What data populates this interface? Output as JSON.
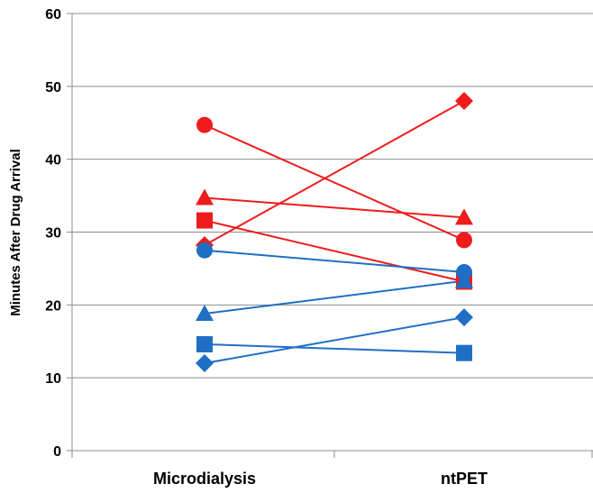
{
  "chart_data": {
    "type": "line",
    "title": "",
    "xlabel": "",
    "ylabel": "Minutes After Drug Arrival",
    "categories": [
      "Microdialysis",
      "ntPET"
    ],
    "ylim": [
      0,
      60
    ],
    "yticks": [
      "0",
      "10",
      "20",
      "30",
      "40",
      "50",
      "60"
    ],
    "grid": true,
    "legend": "none",
    "series": [
      {
        "marker": "circle",
        "color": "#ee1c1c",
        "values": [
          44.7,
          28.9
        ]
      },
      {
        "marker": "diamond",
        "color": "#ee1c1c",
        "values": [
          28.2,
          48.0
        ]
      },
      {
        "marker": "triangle",
        "color": "#ee1c1c",
        "values": [
          34.7,
          32.0
        ]
      },
      {
        "marker": "square",
        "color": "#ee1c1c",
        "values": [
          31.6,
          23.2
        ]
      },
      {
        "marker": "circle",
        "color": "#1f6fc5",
        "values": [
          27.5,
          24.5
        ]
      },
      {
        "marker": "triangle",
        "color": "#1f6fc5",
        "values": [
          18.8,
          23.3
        ]
      },
      {
        "marker": "square",
        "color": "#1f6fc5",
        "values": [
          14.6,
          13.4
        ]
      },
      {
        "marker": "diamond",
        "color": "#1f6fc5",
        "values": [
          12.0,
          18.3
        ]
      }
    ]
  }
}
